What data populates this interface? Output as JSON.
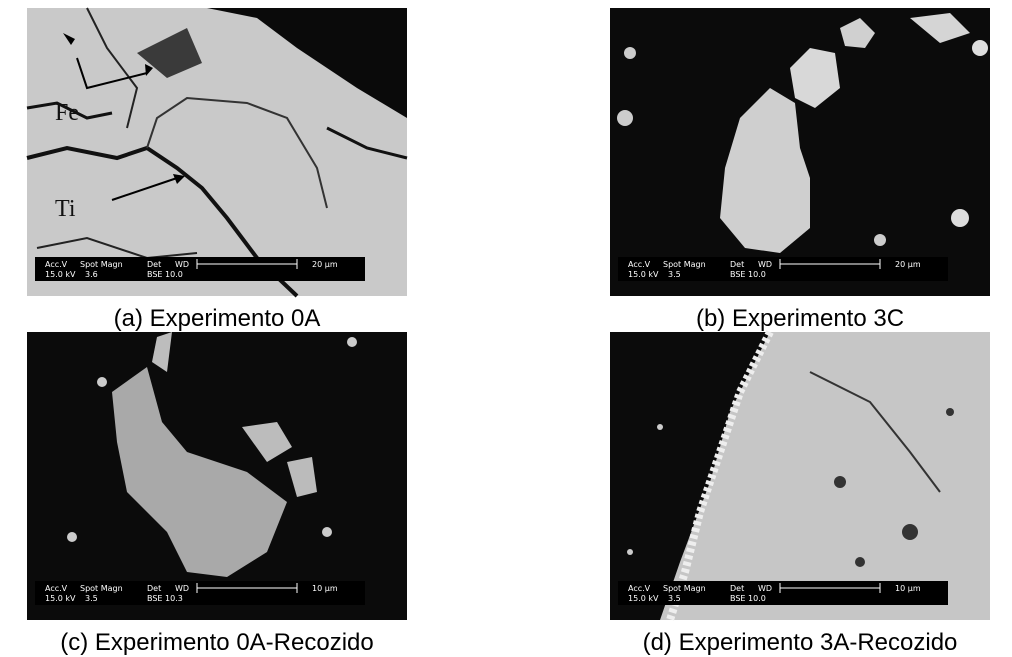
{
  "panels": [
    {
      "caption": "(a) Experimento 0A",
      "annotations": [
        "Fe",
        "Ti"
      ],
      "info_header": [
        "Acc.V",
        "Spot Magn",
        "Det",
        "WD"
      ],
      "info_values": [
        "15.0 kV",
        "3.6",
        "BSE",
        "10.0"
      ],
      "scale": "20 µm"
    },
    {
      "caption": "(b) Experimento 3C",
      "annotations": [],
      "info_header": [
        "Acc.V",
        "Spot Magn",
        "Det",
        "WD"
      ],
      "info_values": [
        "15.0 kV",
        "3.5",
        "BSE",
        "10.0"
      ],
      "scale": "20 µm"
    },
    {
      "caption": "(c) Experimento 0A-Recozido",
      "annotations": [],
      "info_header": [
        "Acc.V",
        "Spot Magn",
        "Det",
        "WD"
      ],
      "info_values": [
        "15.0 kV",
        "3.5",
        "BSE",
        "10.3"
      ],
      "scale": "10 µm"
    },
    {
      "caption": "(d) Experimento 3A-Recozido",
      "annotations": [],
      "info_header": [
        "Acc.V",
        "Spot Magn",
        "Det",
        "WD"
      ],
      "info_values": [
        "15.0 kV",
        "3.5",
        "BSE",
        "10.0"
      ],
      "scale": "10 µm"
    }
  ]
}
